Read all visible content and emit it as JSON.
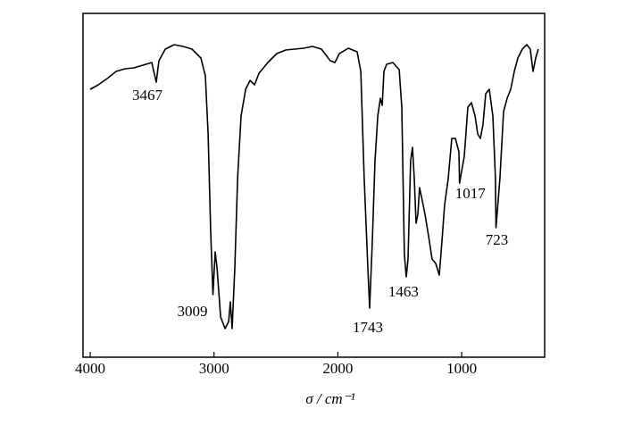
{
  "chart_data": {
    "type": "line",
    "xlabel": "σ / cm⁻¹",
    "xlim": [
      4058,
      330
    ],
    "ylim": [
      0,
      385
    ],
    "xticks": [
      4000,
      3000,
      2000,
      1000
    ],
    "color": "#000000",
    "x": [
      4000,
      3935,
      3863,
      3791,
      3719,
      3647,
      3575,
      3503,
      3467,
      3445,
      3394,
      3322,
      3250,
      3178,
      3106,
      3070,
      3048,
      3027,
      3009,
      2991,
      2976,
      2947,
      2911,
      2882,
      2868,
      2854,
      2832,
      2810,
      2782,
      2745,
      2709,
      2673,
      2637,
      2565,
      2493,
      2421,
      2277,
      2205,
      2133,
      2061,
      2024,
      1988,
      1916,
      1844,
      1815,
      1787,
      1758,
      1743,
      1722,
      1700,
      1678,
      1657,
      1642,
      1628,
      1606,
      1556,
      1505,
      1484,
      1463,
      1448,
      1433,
      1412,
      1397,
      1383,
      1368,
      1354,
      1340,
      1318,
      1296,
      1267,
      1239,
      1210,
      1181,
      1159,
      1138,
      1109,
      1080,
      1051,
      1022,
      1017,
      979,
      950,
      921,
      892,
      871,
      849,
      828,
      806,
      777,
      748,
      727,
      723,
      691,
      662,
      633,
      604,
      575,
      546,
      510,
      474,
      446,
      424,
      402,
      381
    ],
    "values": [
      300,
      305,
      312,
      320,
      323,
      324,
      327,
      330,
      308,
      332,
      345,
      350,
      348,
      345,
      335,
      315,
      250,
      140,
      70,
      118,
      100,
      45,
      32,
      40,
      62,
      32,
      100,
      200,
      270,
      300,
      310,
      305,
      318,
      330,
      340,
      344,
      346,
      348,
      345,
      332,
      330,
      340,
      346,
      342,
      320,
      200,
      100,
      55,
      130,
      220,
      270,
      290,
      282,
      320,
      328,
      330,
      322,
      280,
      115,
      90,
      110,
      220,
      235,
      200,
      150,
      160,
      190,
      175,
      160,
      135,
      110,
      105,
      92,
      130,
      170,
      200,
      245,
      245,
      230,
      195,
      225,
      280,
      285,
      270,
      250,
      245,
      260,
      295,
      300,
      270,
      200,
      145,
      200,
      275,
      290,
      300,
      320,
      335,
      345,
      350,
      345,
      320,
      335,
      345
    ],
    "annotations": [
      {
        "label": "3467",
        "x": 3467
      },
      {
        "label": "3009",
        "x": 3009
      },
      {
        "label": "1743",
        "x": 1743
      },
      {
        "label": "1463",
        "x": 1463
      },
      {
        "label": "1017",
        "x": 1017
      },
      {
        "label": "723",
        "x": 723
      }
    ]
  }
}
